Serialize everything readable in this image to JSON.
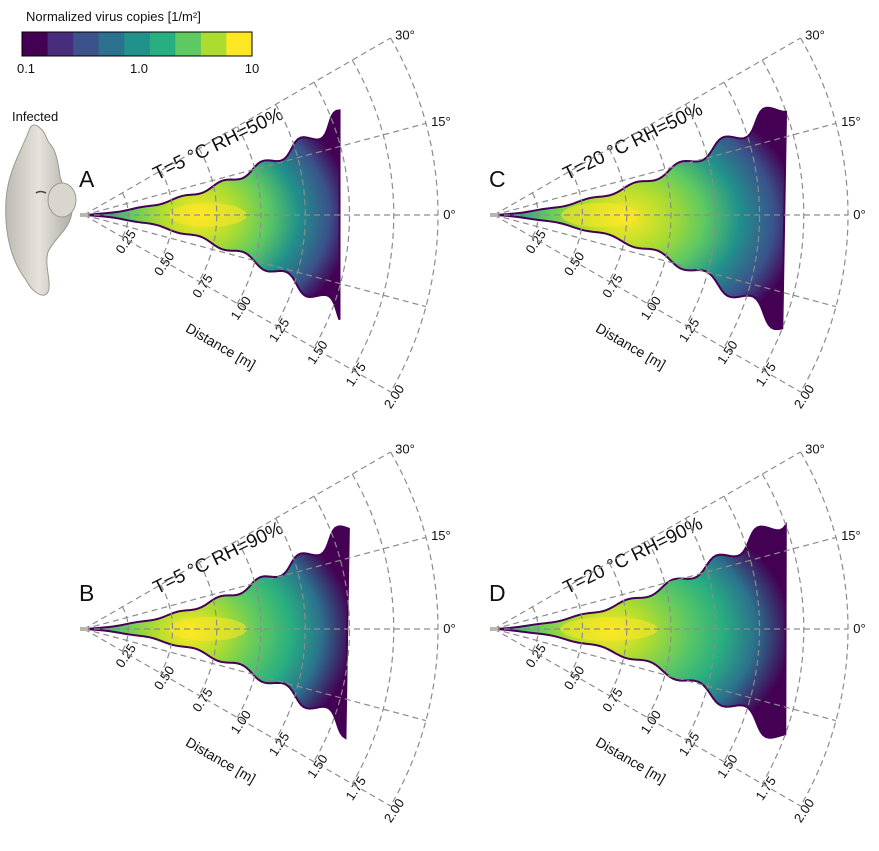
{
  "colorbar": {
    "title": "Normalized virus copies [1/m²]",
    "ticks": [
      "0.1",
      "1.0",
      "10"
    ],
    "scale": "log",
    "range": [
      0.1,
      10
    ],
    "colors": [
      "#440154",
      "#472d7b",
      "#3b528b",
      "#2c728e",
      "#21918c",
      "#28ae80",
      "#5ec962",
      "#addc30",
      "#fde725"
    ]
  },
  "mannequin_label": "Infected",
  "axis": {
    "distance_label": "Distance [m]",
    "distance_ticks": [
      "0.25",
      "0.50",
      "0.75",
      "1.00",
      "1.25",
      "1.50",
      "1.75",
      "2.00"
    ],
    "angle_ticks": [
      "30°",
      "15°",
      "0°"
    ]
  },
  "chart_data": [
    {
      "type": "heatmap",
      "panel": "A",
      "title": "T=5 °C RH=50%",
      "coordinates": "polar",
      "r_range": [
        0,
        2.0
      ],
      "theta_range_deg": [
        -30,
        30
      ],
      "plume_extent_m": 1.56,
      "peak_region_m": [
        0.5,
        0.9
      ],
      "grid": true
    },
    {
      "type": "heatmap",
      "panel": "B",
      "title": "T=5 °C RH=90%",
      "coordinates": "polar",
      "r_range": [
        0,
        2.0
      ],
      "theta_range_deg": [
        -30,
        30
      ],
      "plume_extent_m": 1.6,
      "peak_region_m": [
        0.5,
        0.9
      ],
      "grid": true
    },
    {
      "type": "heatmap",
      "panel": "C",
      "title": "T=20 °C RH=50%",
      "coordinates": "polar",
      "r_range": [
        0,
        2.0
      ],
      "theta_range_deg": [
        -30,
        30
      ],
      "plume_extent_m": 1.75,
      "peak_region_m": [
        0.4,
        0.8
      ],
      "grid": true
    },
    {
      "type": "heatmap",
      "panel": "D",
      "title": "T=20 °C RH=90%",
      "coordinates": "polar",
      "r_range": [
        0,
        2.0
      ],
      "theta_range_deg": [
        -30,
        30
      ],
      "plume_extent_m": 1.75,
      "peak_region_m": [
        0.4,
        0.9
      ],
      "grid": true
    }
  ]
}
